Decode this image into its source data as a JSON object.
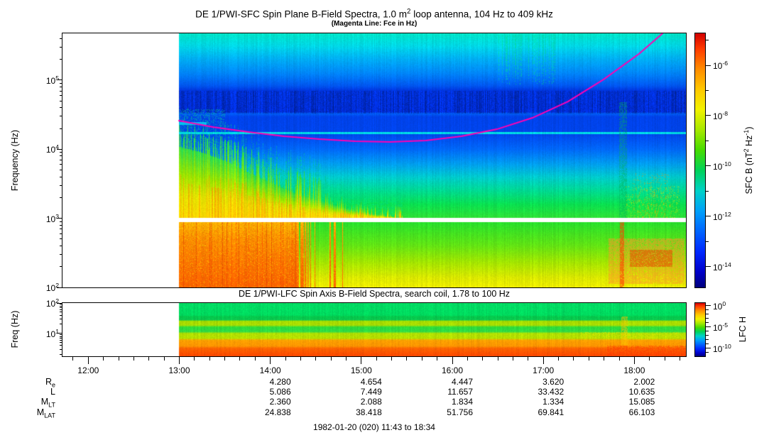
{
  "figure": {
    "title": "DE 1/PWI-SFC  Spin Plane B-Field Spectra, 1.0 m^2 loop antenna, 104 Hz to 409 kHz",
    "subtitle": "(Magenta Line: Fce in Hz)",
    "footer": "1982-01-20 (020) 11:43 to 18:34",
    "background_color": "#ffffff"
  },
  "sfc_panel": {
    "ylabel": "Frequency (Hz)",
    "ytick_labels": [
      "10^5",
      "10^4",
      "10^3",
      "10^2"
    ],
    "ytick_exponents": [
      5,
      4,
      3,
      2
    ],
    "colorbar": {
      "label": "SFC B (nT^2 Hz^-1)",
      "tick_labels": [
        "10^-6",
        "10^-8",
        "10^-10",
        "10^-12",
        "10^-14"
      ],
      "tick_exponents": [
        -6,
        -8,
        -10,
        -12,
        -14
      ],
      "minor_exponents": [
        -5,
        -7,
        -9,
        -11,
        -13
      ]
    }
  },
  "lfc_panel": {
    "title": "DE 1/PWI-LFC  Spin Axis B-Field Spectra, search coil, 1.78 to 100 Hz",
    "ylabel": "Freq (Hz)",
    "ytick_labels": [
      "10^2",
      "10^1"
    ],
    "ytick_exponents": [
      2,
      1
    ],
    "colorbar": {
      "label": "LFC H",
      "tick_labels": [
        "10^0",
        "10^-5",
        "10^-10"
      ],
      "tick_exponents": [
        0,
        -5,
        -10
      ],
      "minor_exponents": [
        -1,
        -2,
        -3,
        -4,
        -6,
        -7,
        -8,
        -9,
        -11
      ]
    }
  },
  "time_axis": {
    "start_label": "11:43",
    "end_label": "18:34",
    "start_hour": 11.7167,
    "end_hour": 18.5667,
    "hour_ticks": [
      {
        "t": 12,
        "label": "12:00"
      },
      {
        "t": 13,
        "label": "13:00"
      },
      {
        "t": 14,
        "label": "14:00"
      },
      {
        "t": 15,
        "label": "15:00"
      },
      {
        "t": 16,
        "label": "16:00"
      },
      {
        "t": 17,
        "label": "17:00"
      },
      {
        "t": 18,
        "label": "18:00"
      }
    ],
    "minor_step_minutes": 10
  },
  "ephemeris": {
    "column_hours": [
      14,
      15,
      16,
      17,
      18
    ],
    "rows": [
      {
        "label": "R_e",
        "values": [
          "4.280",
          "4.654",
          "4.447",
          "3.620",
          "2.002"
        ]
      },
      {
        "label": "L",
        "values": [
          "5.086",
          "7.449",
          "11.657",
          "33.432",
          "10.635"
        ]
      },
      {
        "label": "M_LT",
        "values": [
          "2.360",
          "2.088",
          "1.834",
          "1.334",
          "15.085"
        ]
      },
      {
        "label": "M_LAT",
        "values": [
          "24.838",
          "38.418",
          "51.756",
          "69.841",
          "66.103"
        ]
      }
    ]
  },
  "colormap": [
    [
      0.0,
      "#d20000"
    ],
    [
      0.06,
      "#ff3a00"
    ],
    [
      0.14,
      "#ff8c00"
    ],
    [
      0.22,
      "#ffc800"
    ],
    [
      0.3,
      "#f2f200"
    ],
    [
      0.38,
      "#a6e900"
    ],
    [
      0.46,
      "#46dc00"
    ],
    [
      0.54,
      "#00d25a"
    ],
    [
      0.62,
      "#00d2c8"
    ],
    [
      0.7,
      "#00a0fa"
    ],
    [
      0.78,
      "#0064ff"
    ],
    [
      0.86,
      "#0028ff"
    ],
    [
      0.94,
      "#0000c8"
    ],
    [
      1.0,
      "#00007d"
    ]
  ],
  "chart_data": [
    {
      "type": "heatmap",
      "name": "SFC spectrogram",
      "title": "DE 1/PWI-SFC Spin Plane B-Field Spectra, 1.0 m^2 loop antenna, 104 Hz to 409 kHz",
      "instrument_range_hz": [
        104,
        409000
      ],
      "axes": {
        "t_start": 11.7167,
        "t_end": 18.5667,
        "data_start": 13.0,
        "y_scale": "log",
        "log_top": 5.678,
        "log_bottom": 2.0,
        "z_label": "SFC B (nT^2 Hz^-1)",
        "z_ticks": [
          1e-06,
          1e-08,
          1e-10,
          1e-12,
          1e-14
        ]
      },
      "fce_line": {
        "label": "Fce in Hz",
        "color": "#ff00b4",
        "points": [
          [
            12.996,
            25900
          ],
          [
            13.37,
            21000
          ],
          [
            13.76,
            17800
          ],
          [
            14.15,
            15400
          ],
          [
            14.54,
            14000
          ],
          [
            14.93,
            13100
          ],
          [
            15.32,
            12800
          ],
          [
            15.71,
            13400
          ],
          [
            16.1,
            15400
          ],
          [
            16.49,
            19500
          ],
          [
            16.88,
            28500
          ],
          [
            17.27,
            49100
          ],
          [
            17.66,
            102000
          ],
          [
            18.05,
            240000
          ],
          [
            18.31,
            476000
          ]
        ]
      },
      "notable_features": [
        "no data before 13:00 (white)",
        "bright cyan narrowband line near 16 kHz across whole pass",
        "dark quiet band 30-60 kHz",
        "auroral hiss funnel descending from ~25 kHz at 13:00 to ~1 kHz by 15:20 (green-yellow-orange)",
        "intense orange-red emission 100 Hz - 1 kHz from 13:00 to ~14:25",
        "white instrument gap at ~1 kHz",
        "green streaks above 100 kHz near 16:30-17:10",
        "orange-red low-frequency burst 17:45-18:30 below 1 kHz"
      ],
      "render": {
        "gap": [
          0.7263,
          0.744
        ],
        "cyan_line": 0.388,
        "base_stops": [
          [
            0.0,
            "#00e4c8"
          ],
          [
            0.05,
            "#00d8e8"
          ],
          [
            0.1,
            "#00aef4"
          ],
          [
            0.155,
            "#0086fa"
          ],
          [
            0.205,
            "#0056f0"
          ],
          [
            0.226,
            "#0032dd"
          ],
          [
            0.308,
            "#002edd"
          ],
          [
            0.315,
            "#005cf4"
          ],
          [
            0.327,
            "#0042ea"
          ],
          [
            0.393,
            "#0045ec"
          ],
          [
            0.455,
            "#0068fa"
          ],
          [
            0.515,
            "#00a0ee"
          ],
          [
            0.565,
            "#00cccd"
          ],
          [
            0.615,
            "#00da96"
          ],
          [
            0.672,
            "#0ae050"
          ],
          [
            0.726,
            "#30e236"
          ]
        ],
        "lower_quiet_stops": [
          [
            0.0,
            "#28e02c"
          ],
          [
            0.35,
            "#62e414"
          ],
          [
            0.62,
            "#a6e600"
          ],
          [
            0.85,
            "#dce800"
          ],
          [
            1.0,
            "#f0ee00"
          ]
        ],
        "lower_active_stops": [
          [
            0.0,
            "#ffb400"
          ],
          [
            0.25,
            "#ff9000"
          ],
          [
            0.6,
            "#ff7800"
          ],
          [
            1.0,
            "#ff6400"
          ]
        ],
        "funnel_stops": [
          [
            0.0,
            "#1edc5a"
          ],
          [
            0.4,
            "#96e600"
          ],
          [
            0.7,
            "#e6e600"
          ],
          [
            1.0,
            "#ffdc00"
          ]
        ],
        "funnel_cutoff": [
          [
            13.0,
            0.445
          ],
          [
            13.25,
            0.468
          ],
          [
            13.5,
            0.5
          ],
          [
            13.75,
            0.545
          ],
          [
            14.0,
            0.585
          ],
          [
            14.25,
            0.625
          ],
          [
            14.6,
            0.665
          ],
          [
            14.9,
            0.695
          ],
          [
            15.2,
            0.714
          ],
          [
            15.45,
            0.7263
          ]
        ],
        "lower_active_end": 14.38,
        "features": [
          {
            "name": "left-cyan-speckle",
            "band": "upper",
            "t0": 13.0,
            "t1": 13.5,
            "y0": 0.3,
            "y1": 0.46,
            "color": "#00cfa8",
            "p": 0.3,
            "blend": 0.5,
            "fade": true
          },
          {
            "name": "top-green-streaks",
            "band": "upper",
            "t0": 16.5,
            "t1": 17.2,
            "y0": 0.005,
            "y1": 0.2,
            "color": "#00dc96",
            "p": 0.33,
            "blend": 0.6,
            "columnar": true,
            "fade": true
          },
          {
            "name": "mid-green-streak",
            "band": "upper",
            "t0": 17.83,
            "t1": 17.92,
            "y0": 0.27,
            "y1": 0.725,
            "color": "#00b45a",
            "p": 0.6,
            "blend": 0.45
          },
          {
            "name": "right-yellow-speckle",
            "band": "upper",
            "t0": 17.9,
            "t1": 18.5,
            "y0": 0.6,
            "y1": 0.725,
            "color": "#d8e600",
            "p": 0.14,
            "blend": 0.5
          },
          {
            "name": "right-orange-speckle",
            "band": "upper",
            "t0": 17.98,
            "t1": 18.4,
            "y0": 0.55,
            "y1": 0.725,
            "color": "#ff9600",
            "p": 0.08,
            "blend": 0.55
          },
          {
            "name": "cyan-dash",
            "band": "upper",
            "t0": 13.0,
            "t1": 13.3,
            "y0": 0.349,
            "y1": 0.359,
            "color": "#00d2f5",
            "p": 1,
            "blend": 0.85
          },
          {
            "name": "lower-orange-blob",
            "band": "lower",
            "t0": 17.72,
            "t1": 18.55,
            "y0": 0.25,
            "y1": 0.95,
            "color": "#ff9628",
            "p": 0.8,
            "blend": 0.55
          },
          {
            "name": "lower-blob-core",
            "band": "lower",
            "t0": 17.95,
            "t1": 18.42,
            "y0": 0.42,
            "y1": 0.68,
            "color": "#e65000",
            "p": 0.85,
            "blend": 0.6
          },
          {
            "name": "lower-red-streak",
            "band": "lower",
            "t0": 17.84,
            "t1": 17.89,
            "y0": 0.0,
            "y1": 1.0,
            "color": "#ff3c00",
            "p": 0.85,
            "blend": 0.6
          }
        ]
      }
    },
    {
      "type": "heatmap",
      "name": "LFC spectrogram",
      "title": "DE 1/PWI-LFC Spin Axis B-Field Spectra, search coil, 1.78 to 100 Hz",
      "instrument_range_hz": [
        1.78,
        100
      ],
      "axes": {
        "t_start": 11.7167,
        "t_end": 18.5667,
        "data_start": 13.0,
        "y_scale": "log",
        "log_top": 2.0,
        "log_bottom": 0.25,
        "z_label": "LFC H",
        "z_ticks": [
          1,
          1e-05,
          1e-10
        ]
      },
      "notable_features": [
        "no data before 13:00 (white)",
        "layered green / yellow-green bands 5-100 Hz, steady across pass",
        "orange band near 3 Hz and red-orange band below 2.5 Hz",
        "reddening and bright streaks after ~17:45"
      ],
      "render": {
        "stops": [
          [
            0.0,
            "#00dc64"
          ],
          [
            0.22,
            "#00dc5f"
          ],
          [
            0.25,
            "#06c84b"
          ],
          [
            0.31,
            "#0ac850"
          ],
          [
            0.335,
            "#a8dc00"
          ],
          [
            0.41,
            "#aade00"
          ],
          [
            0.445,
            "#2cdc3c"
          ],
          [
            0.53,
            "#30dc46"
          ],
          [
            0.565,
            "#b4e000"
          ],
          [
            0.655,
            "#b4e000"
          ],
          [
            0.695,
            "#ffa000"
          ],
          [
            0.8,
            "#ff9600"
          ],
          [
            0.845,
            "#ff6400"
          ],
          [
            1.0,
            "#ff4600"
          ]
        ],
        "features": [
          {
            "name": "right-red-deepening",
            "band": "upper",
            "t0": 17.7,
            "t1": 18.57,
            "y0": 0.8,
            "y1": 1.0,
            "color": "#ff3200",
            "p": 0.5,
            "blend": 0.5
          },
          {
            "name": "bright-orange-column",
            "band": "upper",
            "t0": 17.86,
            "t1": 17.93,
            "y0": 0.25,
            "y1": 0.8,
            "color": "#ffc800",
            "p": 0.8,
            "blend": 0.5
          },
          {
            "name": "right-yellow-speckle",
            "band": "upper",
            "t0": 17.4,
            "t1": 18.57,
            "y0": 0.54,
            "y1": 0.67,
            "color": "#ffe000",
            "p": 0.2,
            "blend": 0.5
          }
        ]
      }
    }
  ]
}
